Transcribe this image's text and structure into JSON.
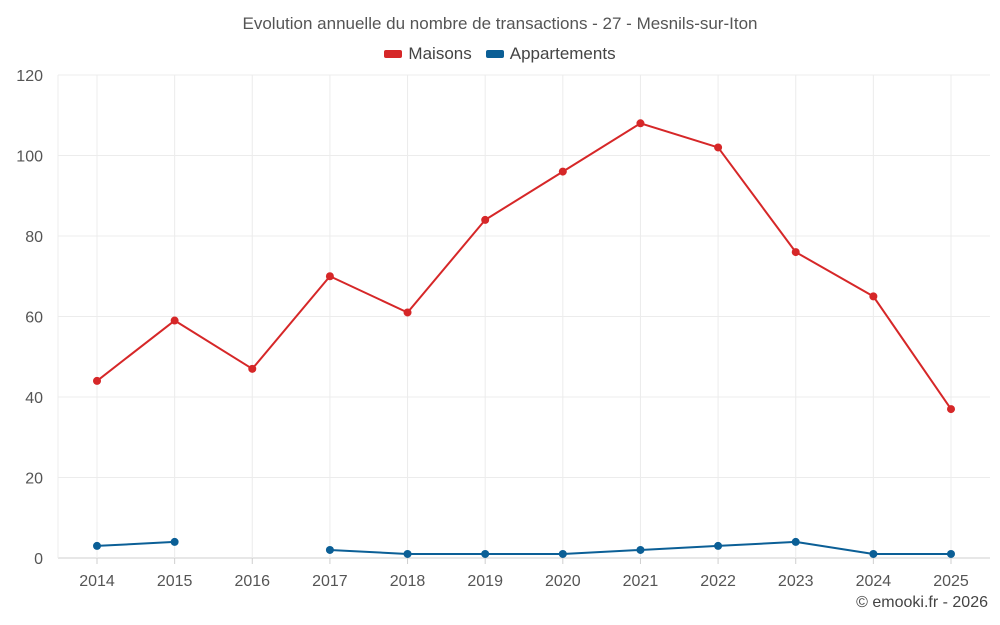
{
  "chart_data": {
    "type": "line",
    "title": "Evolution annuelle du nombre de transactions - 27 - Mesnils-sur-Iton",
    "xlabel": "",
    "ylabel": "",
    "categories": [
      "2014",
      "2015",
      "2016",
      "2017",
      "2018",
      "2019",
      "2020",
      "2021",
      "2022",
      "2023",
      "2024",
      "2025"
    ],
    "ylim": [
      0,
      120
    ],
    "yticks": [
      0,
      20,
      40,
      60,
      80,
      100,
      120
    ],
    "grid": true,
    "legend_position": "top-center",
    "series": [
      {
        "name": "Maisons",
        "color": "#d62728",
        "values": [
          44,
          59,
          47,
          70,
          61,
          84,
          96,
          108,
          102,
          76,
          65,
          37
        ]
      },
      {
        "name": "Appartements",
        "color": "#0b5f96",
        "values": [
          3,
          4,
          null,
          2,
          1,
          1,
          1,
          2,
          3,
          4,
          1,
          1
        ]
      }
    ]
  },
  "credit": "© emooki.fr - 2026"
}
